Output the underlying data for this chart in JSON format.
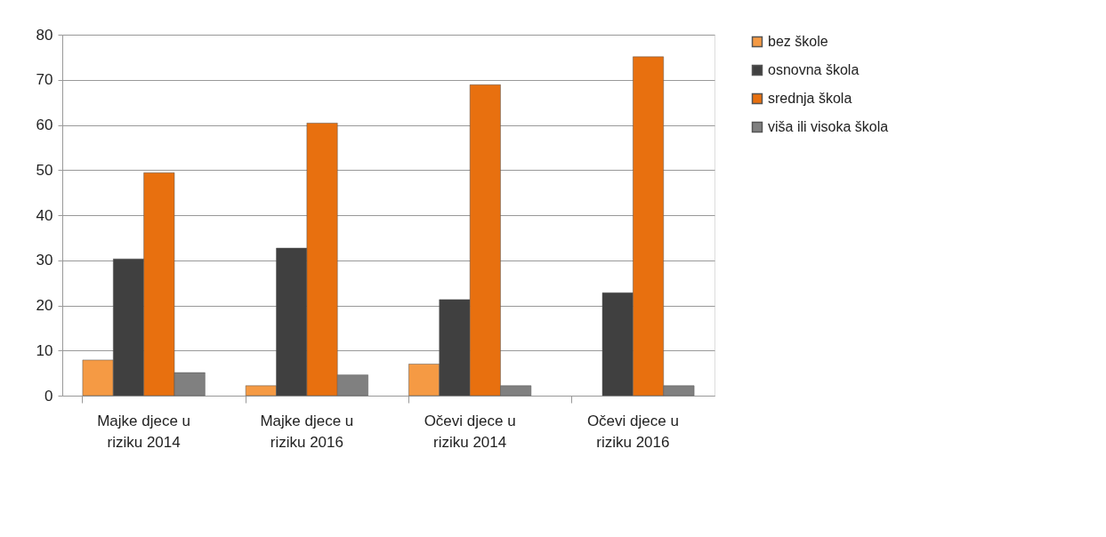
{
  "chart_data": {
    "type": "bar",
    "categories": [
      "Majke djece u riziku 2014",
      "Majke djece u riziku 2016",
      "Očevi djece u riziku 2014",
      "Očevi djece u riziku 2016"
    ],
    "series": [
      {
        "name": "bez škole",
        "color": "#f59a44",
        "values": [
          7.9,
          2.2,
          7.0,
          null
        ]
      },
      {
        "name": "osnovna škola",
        "color": "#404040",
        "values": [
          30.3,
          32.7,
          21.3,
          22.8
        ]
      },
      {
        "name": "srednja škola",
        "color": "#e8700f",
        "values": [
          49.4,
          60.4,
          68.9,
          75.1
        ]
      },
      {
        "name": "viša ili visoka škola",
        "color": "#808080",
        "values": [
          5.1,
          4.6,
          2.2,
          2.2
        ]
      }
    ],
    "ylim": [
      0,
      80
    ],
    "yticks": [
      0,
      10,
      20,
      30,
      40,
      50,
      60,
      70,
      80
    ],
    "grid": "y",
    "legend": "right"
  }
}
